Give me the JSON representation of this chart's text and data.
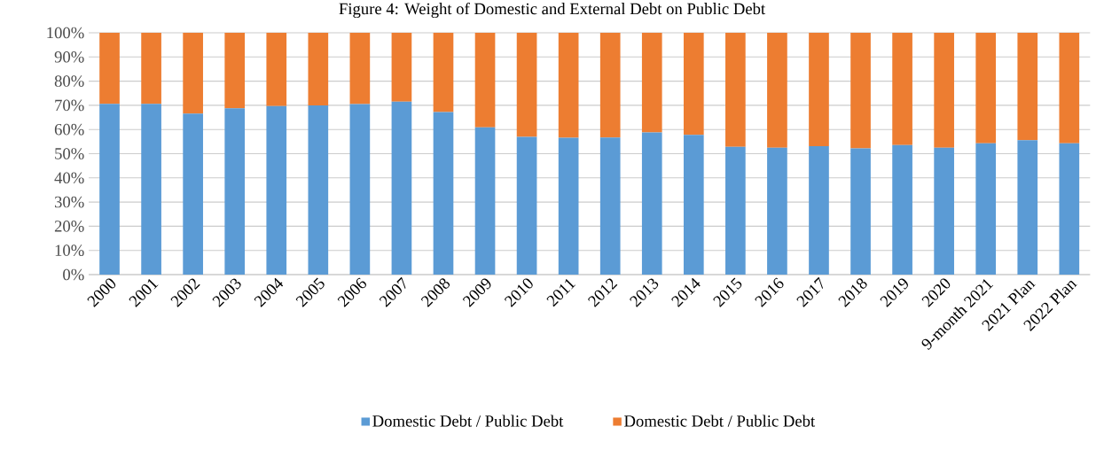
{
  "chart_data": {
    "type": "bar",
    "stacked": true,
    "title": "Figure 4: Weight of Domestic and External Debt on Public Debt",
    "categories": [
      "2000",
      "2001",
      "2002",
      "2003",
      "2004",
      "2005",
      "2006",
      "2007",
      "2008",
      "2009",
      "2010",
      "2011",
      "2012",
      "2013",
      "2014",
      "2015",
      "2016",
      "2017",
      "2018",
      "2019",
      "2020",
      "9-month 2021",
      "2021 Plan",
      "2022 Plan"
    ],
    "series": [
      {
        "name": "Domestic Debt / Public Debt",
        "color": "#5b9bd5",
        "values": [
          70.6,
          70.6,
          66.6,
          68.8,
          69.7,
          70.0,
          70.5,
          71.5,
          67.2,
          60.9,
          57.0,
          56.6,
          56.7,
          58.8,
          57.8,
          52.8,
          52.5,
          53.1,
          52.2,
          53.6,
          52.5,
          54.3,
          55.6,
          54.3
        ]
      },
      {
        "name": "Domestic Debt / Public Debt",
        "color": "#ed7d31",
        "values": [
          29.4,
          29.4,
          33.4,
          31.2,
          30.3,
          30.0,
          29.5,
          28.5,
          32.8,
          39.1,
          43.0,
          43.4,
          43.3,
          41.2,
          42.2,
          47.2,
          47.5,
          46.9,
          47.8,
          46.4,
          47.5,
          45.7,
          44.4,
          45.7
        ]
      }
    ],
    "ylim": [
      0,
      100
    ],
    "yticks": [
      {
        "value": 0,
        "label": "0%"
      },
      {
        "value": 10,
        "label": "10%"
      },
      {
        "value": 20,
        "label": "20%"
      },
      {
        "value": 30,
        "label": "30%"
      },
      {
        "value": 40,
        "label": "40%"
      },
      {
        "value": 50,
        "label": "50%"
      },
      {
        "value": 60,
        "label": "60%"
      },
      {
        "value": 70,
        "label": "70%"
      },
      {
        "value": 80,
        "label": "80%"
      },
      {
        "value": 90,
        "label": "90%"
      },
      {
        "value": 100,
        "label": "100%"
      }
    ],
    "grid": "y",
    "legend": "bottom"
  }
}
